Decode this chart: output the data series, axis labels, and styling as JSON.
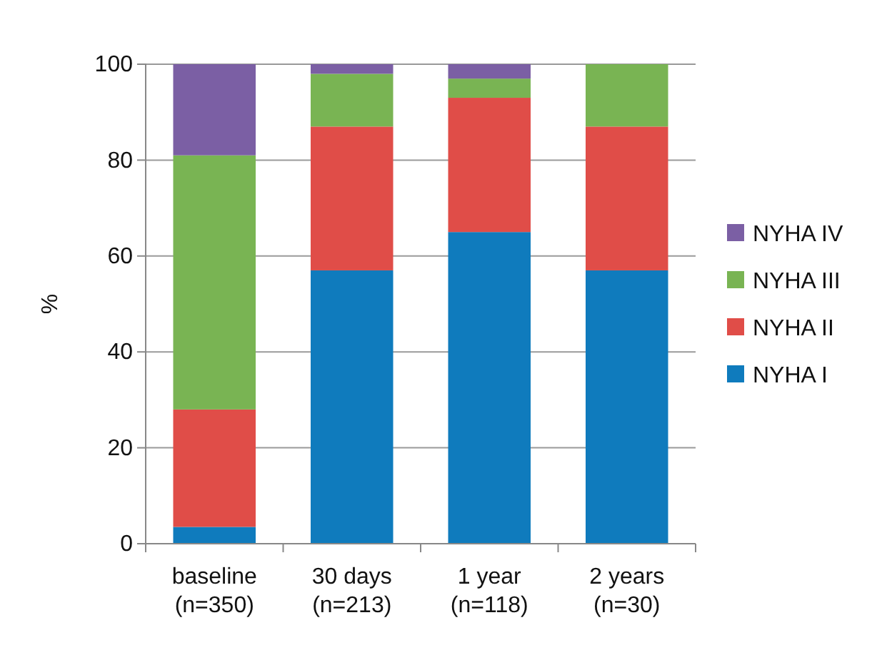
{
  "chart_data": {
    "type": "bar",
    "stacked": true,
    "ylabel": "%",
    "categories": [
      "baseline\n(n=350)",
      "30 days\n(n=213)",
      "1 year\n(n=118)",
      "2 years\n(n=30)"
    ],
    "series": [
      {
        "name": "NYHA I",
        "color": "#0f7bbd",
        "values": [
          3.5,
          57,
          65,
          57
        ]
      },
      {
        "name": "NYHA II",
        "color": "#e04d48",
        "values": [
          24.5,
          30,
          28,
          30
        ]
      },
      {
        "name": "NYHA III",
        "color": "#79b453",
        "values": [
          53,
          11,
          4,
          13
        ]
      },
      {
        "name": "NYHA IV",
        "color": "#7b5fa4",
        "values": [
          19,
          2,
          3,
          0
        ]
      }
    ],
    "ylim": [
      0,
      100
    ],
    "yticks": [
      0,
      20,
      40,
      60,
      80,
      100
    ],
    "grid": "y",
    "legend": "right"
  }
}
